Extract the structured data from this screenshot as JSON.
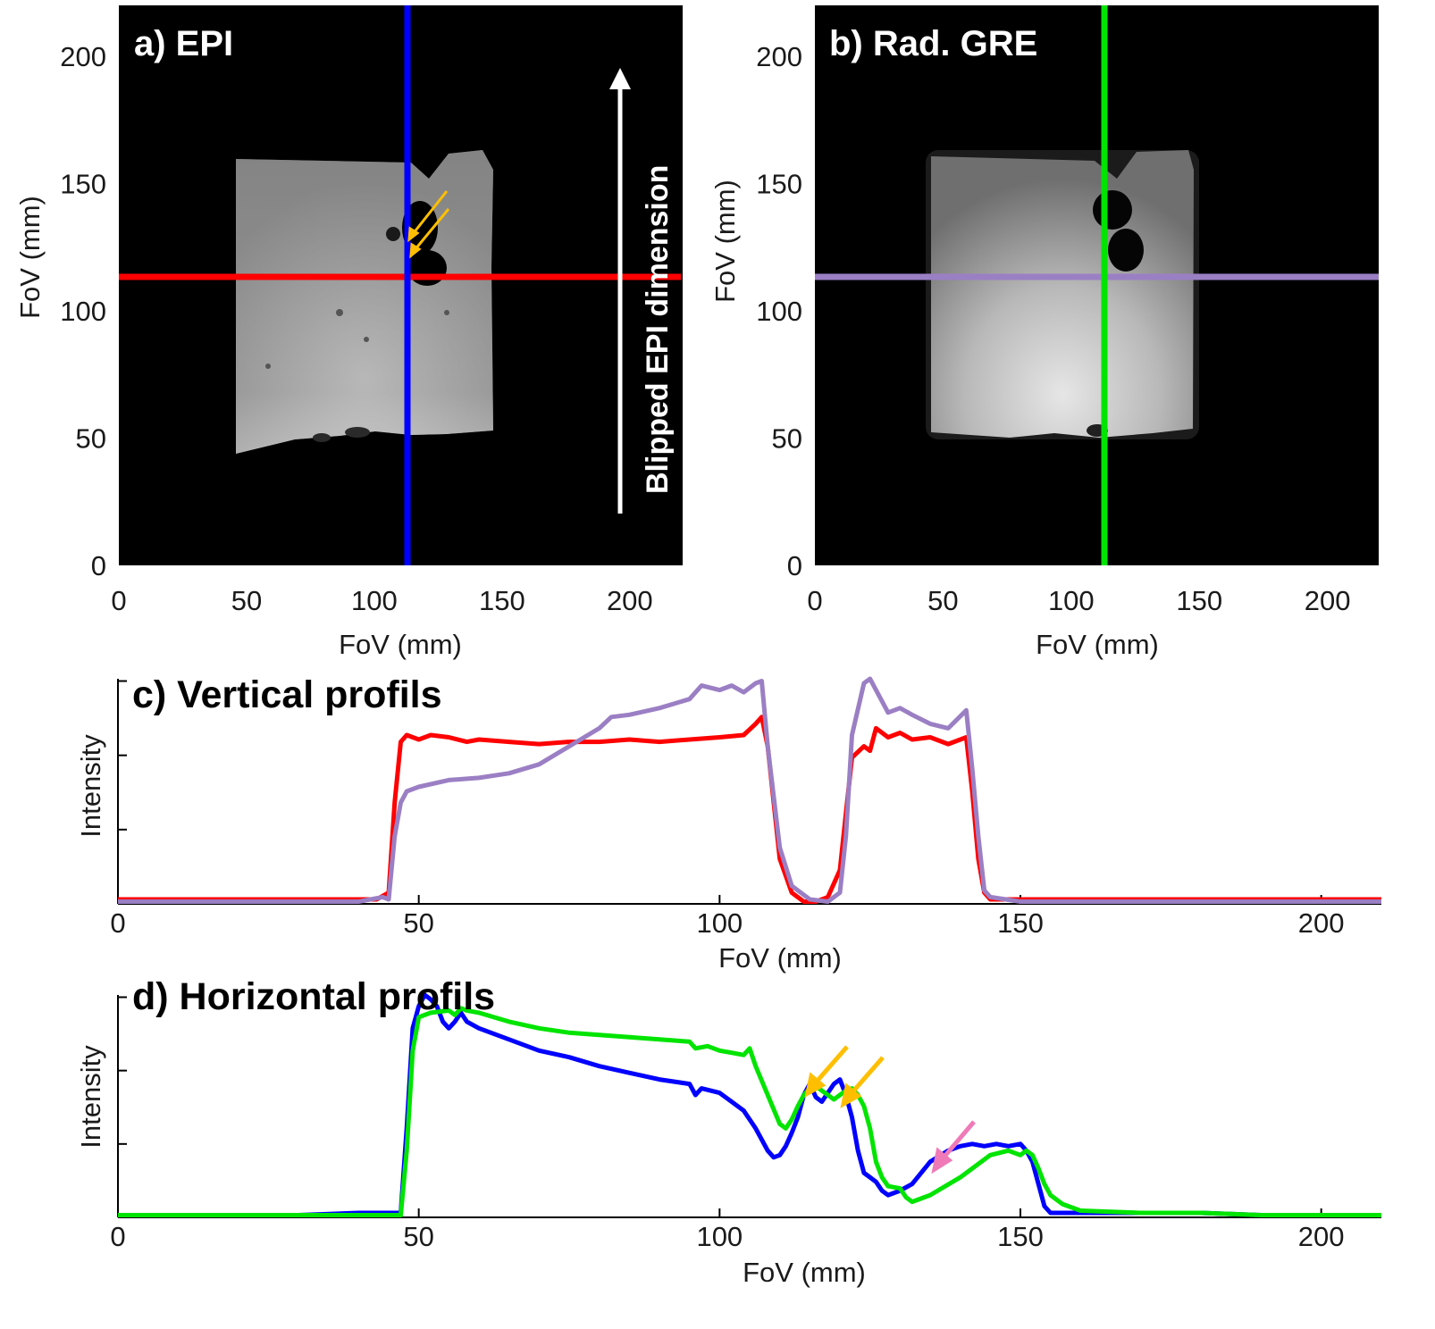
{
  "colors": {
    "epi_vertical": "#ff0000",
    "epi_horizontal": "#0000ff",
    "gre_vertical": "#9b7fc4",
    "gre_horizontal": "#00e400",
    "artifact_arrow": "#ffbf00",
    "gre_arrow": "#f07ab8"
  },
  "chart_data": [
    {
      "type": "image",
      "panel": "a",
      "title": "a) EPI",
      "xlabel": "FoV (mm)",
      "ylabel": "FoV (mm)",
      "xlim": [
        0,
        220
      ],
      "ylim": [
        0,
        220
      ],
      "xticks": [
        0,
        50,
        100,
        150,
        200
      ],
      "yticks": [
        0,
        50,
        100,
        150,
        200
      ],
      "annotation": "Blipped EPI dimension",
      "profile_lines": [
        {
          "orientation": "horizontal",
          "at_mm": 113,
          "color": "red"
        },
        {
          "orientation": "vertical",
          "at_mm": 113,
          "color": "blue"
        }
      ]
    },
    {
      "type": "image",
      "panel": "b",
      "title": "b) Rad. GRE",
      "xlabel": "FoV (mm)",
      "ylabel": "FoV (mm)",
      "xlim": [
        0,
        220
      ],
      "ylim": [
        0,
        220
      ],
      "xticks": [
        0,
        50,
        100,
        150,
        200
      ],
      "yticks": [
        0,
        50,
        100,
        150,
        200
      ],
      "profile_lines": [
        {
          "orientation": "horizontal",
          "at_mm": 113,
          "color": "purple"
        },
        {
          "orientation": "vertical",
          "at_mm": 113,
          "color": "green"
        }
      ]
    },
    {
      "type": "line",
      "panel": "c",
      "title": "c) Vertical profils",
      "xlabel": "FoV (mm)",
      "ylabel": "Intensity",
      "xlim": [
        0,
        210
      ],
      "ylim": [
        0,
        1
      ],
      "xticks": [
        0,
        50,
        100,
        150,
        200
      ],
      "series": [
        {
          "name": "EPI",
          "color": "red",
          "x": [
            0,
            10,
            20,
            30,
            40,
            43,
            45,
            46,
            47,
            48,
            50,
            52,
            55,
            58,
            60,
            65,
            70,
            75,
            80,
            85,
            90,
            95,
            100,
            104,
            106,
            107,
            108,
            110,
            112,
            114,
            116,
            118,
            120,
            121,
            122,
            124,
            125,
            126,
            128,
            130,
            132,
            135,
            138,
            141,
            142,
            143,
            144,
            145,
            150,
            160,
            170,
            180,
            190,
            200,
            210
          ],
          "y": [
            0.02,
            0.02,
            0.02,
            0.02,
            0.02,
            0.02,
            0.05,
            0.45,
            0.72,
            0.75,
            0.73,
            0.75,
            0.74,
            0.72,
            0.73,
            0.72,
            0.71,
            0.72,
            0.72,
            0.73,
            0.72,
            0.73,
            0.74,
            0.75,
            0.8,
            0.83,
            0.7,
            0.2,
            0.05,
            0.01,
            0.01,
            0.03,
            0.15,
            0.4,
            0.65,
            0.7,
            0.68,
            0.78,
            0.74,
            0.76,
            0.73,
            0.74,
            0.71,
            0.74,
            0.5,
            0.2,
            0.05,
            0.02,
            0.02,
            0.02,
            0.02,
            0.02,
            0.02,
            0.02,
            0.02
          ]
        },
        {
          "name": "Radial GRE",
          "color": "purple",
          "x": [
            0,
            10,
            20,
            30,
            40,
            44,
            45,
            46,
            47,
            48,
            50,
            55,
            60,
            65,
            70,
            75,
            80,
            82,
            85,
            90,
            95,
            97,
            100,
            102,
            104,
            106,
            107,
            108,
            110,
            112,
            115,
            118,
            120,
            121,
            122,
            124,
            125,
            126,
            128,
            130,
            132,
            135,
            138,
            141,
            142,
            143,
            144,
            145,
            150,
            160,
            170,
            180,
            190,
            200,
            210
          ],
          "y": [
            0.01,
            0.01,
            0.01,
            0.01,
            0.01,
            0.03,
            0.02,
            0.3,
            0.45,
            0.5,
            0.52,
            0.55,
            0.56,
            0.58,
            0.62,
            0.7,
            0.78,
            0.83,
            0.84,
            0.87,
            0.91,
            0.97,
            0.95,
            0.97,
            0.94,
            0.98,
            0.99,
            0.7,
            0.25,
            0.08,
            0.02,
            0.01,
            0.05,
            0.3,
            0.75,
            0.98,
            1.0,
            0.95,
            0.85,
            0.87,
            0.84,
            0.8,
            0.78,
            0.86,
            0.6,
            0.3,
            0.06,
            0.03,
            0.01,
            0.01,
            0.01,
            0.01,
            0.01,
            0.01,
            0.01
          ]
        }
      ]
    },
    {
      "type": "line",
      "panel": "d",
      "title": "d) Horizontal profils",
      "xlabel": "FoV (mm)",
      "ylabel": "Intensity",
      "xlim": [
        0,
        210
      ],
      "ylim": [
        0,
        1
      ],
      "xticks": [
        0,
        50,
        100,
        150,
        200
      ],
      "series": [
        {
          "name": "EPI",
          "color": "blue",
          "x": [
            0,
            10,
            20,
            30,
            40,
            45,
            47,
            48,
            49,
            50,
            51,
            52,
            53,
            54,
            55,
            56,
            57,
            58,
            60,
            65,
            70,
            75,
            80,
            85,
            90,
            95,
            96,
            97,
            100,
            102,
            104,
            106,
            108,
            109,
            110,
            111,
            112,
            113,
            114,
            115,
            116,
            117,
            118,
            119,
            120,
            121,
            122,
            123,
            124,
            125,
            126,
            127,
            128,
            130,
            132,
            135,
            138,
            140,
            142,
            144,
            146,
            148,
            150,
            151,
            152,
            153,
            154,
            155,
            160,
            170,
            180,
            190,
            200,
            210
          ],
          "y": [
            0.01,
            0.01,
            0.01,
            0.01,
            0.02,
            0.02,
            0.02,
            0.4,
            0.85,
            0.95,
            1.0,
            0.98,
            0.95,
            0.88,
            0.85,
            0.88,
            0.92,
            0.88,
            0.85,
            0.8,
            0.75,
            0.72,
            0.68,
            0.65,
            0.62,
            0.6,
            0.55,
            0.58,
            0.56,
            0.52,
            0.48,
            0.4,
            0.3,
            0.27,
            0.28,
            0.32,
            0.38,
            0.45,
            0.55,
            0.6,
            0.54,
            0.52,
            0.56,
            0.6,
            0.62,
            0.55,
            0.45,
            0.3,
            0.2,
            0.18,
            0.16,
            0.12,
            0.1,
            0.12,
            0.15,
            0.25,
            0.3,
            0.32,
            0.33,
            0.32,
            0.33,
            0.32,
            0.33,
            0.3,
            0.25,
            0.15,
            0.05,
            0.02,
            0.02,
            0.02,
            0.02,
            0.01,
            0.01,
            0.01
          ]
        },
        {
          "name": "Radial GRE",
          "color": "green",
          "x": [
            0,
            10,
            20,
            30,
            40,
            45,
            47,
            48,
            49,
            50,
            52,
            55,
            56,
            57,
            58,
            60,
            65,
            70,
            75,
            80,
            85,
            90,
            95,
            96,
            98,
            100,
            102,
            104,
            105,
            106,
            108,
            110,
            111,
            112,
            113,
            114,
            115,
            116,
            117,
            118,
            119,
            120,
            121,
            122,
            123,
            124,
            125,
            126,
            127,
            128,
            130,
            131,
            132,
            135,
            140,
            145,
            148,
            150,
            151,
            152,
            153,
            154,
            155,
            157,
            160,
            170,
            180,
            190,
            200,
            210
          ],
          "y": [
            0.01,
            0.01,
            0.01,
            0.01,
            0.01,
            0.01,
            0.01,
            0.3,
            0.75,
            0.9,
            0.92,
            0.93,
            0.91,
            0.94,
            0.93,
            0.92,
            0.88,
            0.85,
            0.83,
            0.82,
            0.81,
            0.8,
            0.79,
            0.76,
            0.77,
            0.75,
            0.74,
            0.73,
            0.76,
            0.68,
            0.55,
            0.42,
            0.4,
            0.44,
            0.5,
            0.55,
            0.58,
            0.59,
            0.57,
            0.55,
            0.53,
            0.55,
            0.57,
            0.58,
            0.55,
            0.5,
            0.4,
            0.25,
            0.18,
            0.14,
            0.13,
            0.09,
            0.07,
            0.1,
            0.18,
            0.28,
            0.3,
            0.28,
            0.3,
            0.28,
            0.22,
            0.15,
            0.1,
            0.06,
            0.03,
            0.02,
            0.02,
            0.01,
            0.01,
            0.01
          ]
        }
      ],
      "annotations": [
        "2 orange arrows at ~116 and ~122 mm (EPI artifact peaks)",
        "1 pink arrow at ~137 mm"
      ]
    }
  ]
}
